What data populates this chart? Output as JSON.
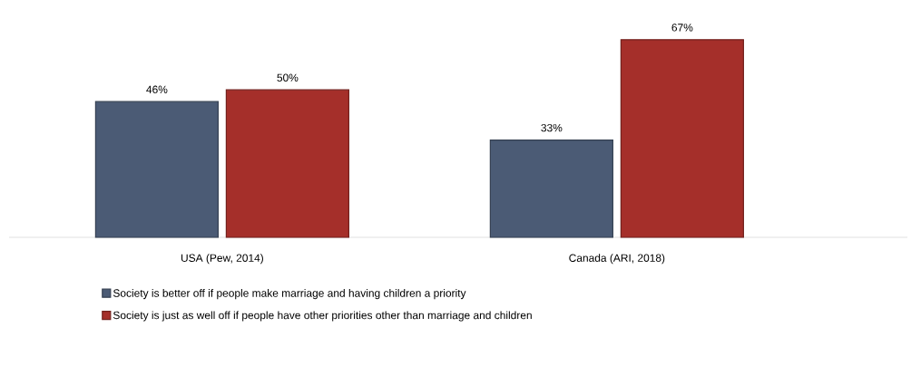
{
  "chart_data": {
    "type": "bar",
    "categories": [
      "USA (Pew, 2014)",
      "Canada (ARI, 2018)"
    ],
    "legend": "bottom",
    "series": [
      {
        "name": "Society is better off if people make marriage and having children a priority",
        "color": "#4b5b75",
        "values": [
          46,
          33
        ],
        "value_labels": [
          "46%",
          "33%"
        ]
      },
      {
        "name": "Society is just as well off if people have other priorities other than marriage and children",
        "color": "#a52f2a",
        "values": [
          50,
          67
        ],
        "value_labels": [
          "50%",
          "67%"
        ]
      }
    ]
  }
}
